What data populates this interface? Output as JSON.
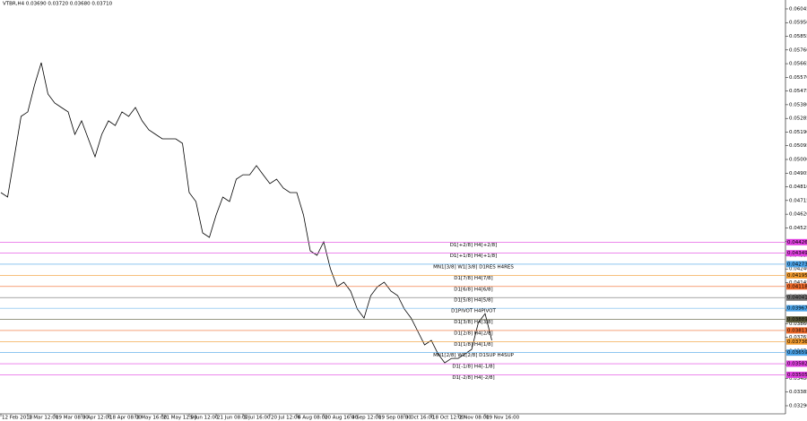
{
  "chart_data": {
    "type": "line",
    "title": "VTBR,H4  0.03690 0.03720 0.03680 0.03710",
    "color": "#000000",
    "categories": [
      "12 Feb 2018",
      null,
      null,
      null,
      "1 Mar 12:00",
      null,
      null,
      null,
      "19 Mar 08:00",
      null,
      null,
      null,
      "3 Apr 12:00",
      null,
      null,
      null,
      "18 Apr 08:00",
      null,
      null,
      null,
      "3 May 16:00",
      null,
      null,
      null,
      "21 May 12:00",
      null,
      null,
      null,
      "5 Jun 12:00",
      null,
      null,
      null,
      "21 Jun 08:00",
      null,
      null,
      null,
      "5 Jul 16:00",
      null,
      null,
      null,
      "20 Jul 12:00",
      null,
      null,
      null,
      "6 Aug 08:00",
      null,
      null,
      null,
      "20 Aug 16:00",
      null,
      null,
      null,
      "4 Sep 12:00",
      null,
      null,
      null,
      "19 Sep 08:00",
      null,
      null,
      null,
      "3 Oct 16:00",
      null,
      null,
      null,
      "18 Oct 12:00",
      null,
      null,
      null,
      "2 Nov 08:00",
      null,
      null,
      null,
      "19 Nov 16:00",
      null
    ],
    "values": [
      0.0477,
      0.04739,
      0.05019,
      0.05299,
      0.0533,
      0.05516,
      0.05672,
      0.05454,
      0.05392,
      0.05361,
      0.0533,
      0.05174,
      0.05268,
      0.05143,
      0.05019,
      0.05174,
      0.05268,
      0.05236,
      0.0533,
      0.05299,
      0.05361,
      0.05268,
      0.05205,
      0.05174,
      0.05143,
      0.05143,
      0.05143,
      0.05112,
      0.0477,
      0.04708,
      0.0449,
      0.04459,
      0.04614,
      0.04739,
      0.04708,
      0.04863,
      0.04894,
      0.04894,
      0.04957,
      0.04894,
      0.04832,
      0.04863,
      0.04801,
      0.0477,
      0.0477,
      0.04614,
      0.04366,
      0.04335,
      0.04428,
      0.04241,
      0.04117,
      0.04148,
      0.04086,
      0.03961,
      0.03899,
      0.04055,
      0.04117,
      0.04148,
      0.04086,
      0.04055,
      0.03961,
      0.03899,
      0.03806,
      0.03713,
      0.03744,
      0.0365,
      0.03588,
      0.03619,
      0.03619,
      0.0365,
      0.03681,
      0.03868,
      0.0393,
      0.03744
    ],
    "ylim": [
      0.03234,
      0.06107
    ],
    "yticks": [
      0.06045,
      {
        "value": 0.0595,
        "label": "0.05950"
      },
      0.05855,
      {
        "value": 0.0576,
        "label": "0.05760"
      },
      0.05665,
      {
        "value": 0.0557,
        "label": "0.05570"
      },
      0.05475,
      {
        "value": 0.0538,
        "label": "0.05380"
      },
      0.05285,
      {
        "value": 0.0519,
        "label": "0.05190"
      },
      0.05095,
      {
        "value": 0.05,
        "label": "0.05000"
      },
      0.04905,
      {
        "value": 0.0481,
        "label": "0.04810"
      },
      0.04715,
      {
        "value": 0.0462,
        "label": "0.04620"
      },
      0.04525,
      {
        "value": 0.0443,
        "label": "0.04430"
      },
      0.04335,
      {
        "value": 0.0424,
        "label": "0.04240"
      },
      0.04145,
      {
        "value": 0.0405,
        "label": "0.04050"
      },
      0.03955,
      {
        "value": 0.0386,
        "label": "0.03860"
      },
      0.03765,
      {
        "value": 0.0367,
        "label": "0.03670"
      },
      0.03575,
      {
        "value": 0.0348,
        "label": "0.03480"
      },
      0.03385,
      {
        "value": 0.0329,
        "label": "0.03290"
      }
    ],
    "levels": [
      {
        "label": "D1[+2/8] H4[+2/8]",
        "value": 0.04426,
        "color": "#e040e0"
      },
      {
        "label": "D1[+1/8] H4[+1/8]",
        "value": 0.04349,
        "color": "#e040e0"
      },
      {
        "label": "MN1[3/8] W1[3/8] D1RES H4RES",
        "value": 0.04273,
        "color": "#4aa3e8"
      },
      {
        "label": "D1[7/8] H4[7/8]",
        "value": 0.04195,
        "color": "#f29b2e"
      },
      {
        "label": "D1[6/8] H4[6/8]",
        "value": 0.04118,
        "color": "#f06a2a"
      },
      {
        "label": "D1[5/8] H4[5/8]",
        "value": 0.04041,
        "color": "#707070"
      },
      {
        "label": "D1PIVOT H4PIVOT",
        "value": 0.03967,
        "color": "#4aa3e8"
      },
      {
        "label": "D1[3/8] H4[3/8]",
        "value": 0.03889,
        "color": "#5a5a3a"
      },
      {
        "label": "D1[2/8] H4[2/8]",
        "value": 0.03813,
        "color": "#f06a2a"
      },
      {
        "label": "D1[1/8] H4[1/8]",
        "value": 0.03736,
        "color": "#f29b2e"
      },
      {
        "label": "MN1[2/8] W1[2/8] D1SUP H4SUP",
        "value": 0.03659,
        "color": "#4aa3e8"
      },
      {
        "label": "D1[-1/8] H4[-1/8]",
        "value": 0.03582,
        "color": "#e040e0"
      },
      {
        "label": "D1[-2/8] H4[-2/8]",
        "value": 0.03505,
        "color": "#e040e0"
      }
    ]
  }
}
